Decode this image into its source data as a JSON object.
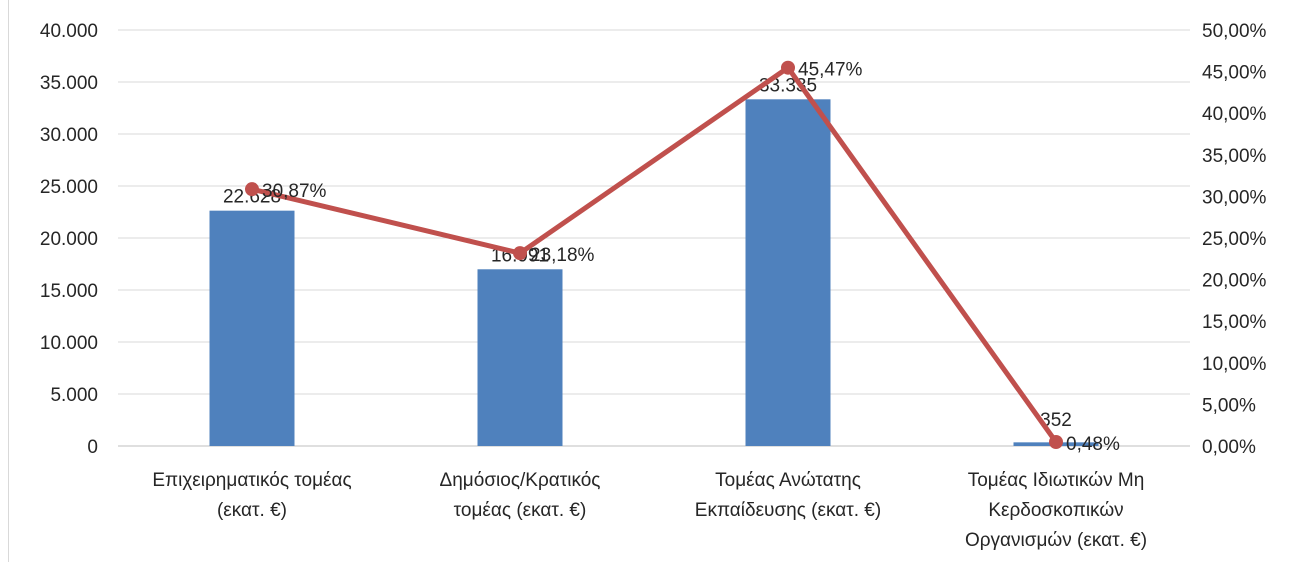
{
  "chart_data": {
    "type": "bar",
    "categories": [
      [
        "Επιχειρηματικός τομέας",
        "(εκατ. €)"
      ],
      [
        "Δημόσιος/Κρατικός",
        "τομέας (εκατ. €)"
      ],
      [
        "Τομέας Ανώτατης",
        "Εκπαίδευσης (εκατ. €)"
      ],
      [
        "Τομέας Ιδιωτικών Μη",
        "Κερδοσκοπικών",
        "Οργανισμών (εκατ. €)"
      ]
    ],
    "series": [
      {
        "type": "bar",
        "axis": "left",
        "values": [
          22628,
          16991,
          33335,
          352
        ],
        "labels": [
          "22.628",
          "16.991",
          "33.335",
          "352"
        ],
        "color": "#4f81bd"
      },
      {
        "type": "line",
        "axis": "right",
        "values": [
          30.87,
          23.18,
          45.47,
          0.48
        ],
        "labels": [
          "30,87%",
          "23,18%",
          "45,47%",
          "0,48%"
        ],
        "color": "#c0504d"
      }
    ],
    "y_left": {
      "range": [
        0,
        40000
      ],
      "ticks": [
        "0",
        "5.000",
        "10.000",
        "15.000",
        "20.000",
        "25.000",
        "30.000",
        "35.000",
        "40.000"
      ]
    },
    "y_right": {
      "range": [
        0,
        50
      ],
      "ticks": [
        "0,00%",
        "5,00%",
        "10,00%",
        "15,00%",
        "20,00%",
        "25,00%",
        "30,00%",
        "35,00%",
        "40,00%",
        "45,00%",
        "50,00%"
      ]
    },
    "grid": true,
    "legend": "none"
  }
}
